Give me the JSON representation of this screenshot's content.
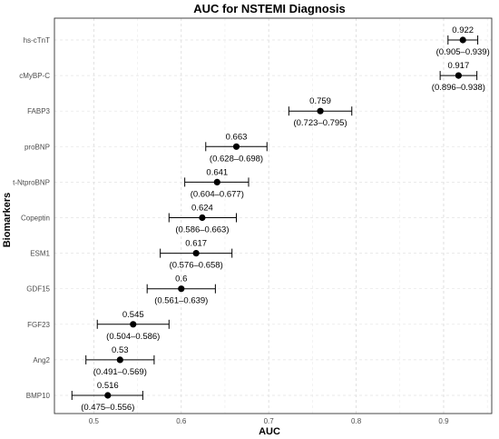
{
  "chart_data": {
    "type": "forest",
    "title": "AUC for NSTEMI Diagnosis",
    "xlabel": "AUC",
    "ylabel": "Biomarkers",
    "xlim": [
      0.455,
      0.955
    ],
    "xticks": [
      0.5,
      0.6,
      0.7,
      0.8,
      0.9
    ],
    "x_tick_labels": [
      "0.5",
      "0.6",
      "0.7",
      "0.8",
      "0.9"
    ],
    "grid": true,
    "border": true,
    "point_color": "#000000",
    "markers": [
      {
        "name": "hs-cTnT",
        "auc": 0.922,
        "lower": 0.905,
        "upper": 0.939,
        "auc_label": "0.922",
        "ci_label": "(0.905–0.939)"
      },
      {
        "name": "cMyBP-C",
        "auc": 0.917,
        "lower": 0.896,
        "upper": 0.938,
        "auc_label": "0.917",
        "ci_label": "(0.896–0.938)"
      },
      {
        "name": "FABP3",
        "auc": 0.759,
        "lower": 0.723,
        "upper": 0.795,
        "auc_label": "0.759",
        "ci_label": "(0.723–0.795)"
      },
      {
        "name": "proBNP",
        "auc": 0.663,
        "lower": 0.628,
        "upper": 0.698,
        "auc_label": "0.663",
        "ci_label": "(0.628–0.698)"
      },
      {
        "name": "t-NtproBNP",
        "auc": 0.641,
        "lower": 0.604,
        "upper": 0.677,
        "auc_label": "0.641",
        "ci_label": "(0.604–0.677)"
      },
      {
        "name": "Copeptin",
        "auc": 0.624,
        "lower": 0.586,
        "upper": 0.663,
        "auc_label": "0.624",
        "ci_label": "(0.586–0.663)"
      },
      {
        "name": "ESM1",
        "auc": 0.617,
        "lower": 0.576,
        "upper": 0.658,
        "auc_label": "0.617",
        "ci_label": "(0.576–0.658)"
      },
      {
        "name": "GDF15",
        "auc": 0.6,
        "lower": 0.561,
        "upper": 0.639,
        "auc_label": "0.6",
        "ci_label": "(0.561–0.639)"
      },
      {
        "name": "FGF23",
        "auc": 0.545,
        "lower": 0.504,
        "upper": 0.586,
        "auc_label": "0.545",
        "ci_label": "(0.504–0.586)"
      },
      {
        "name": "Ang2",
        "auc": 0.53,
        "lower": 0.491,
        "upper": 0.569,
        "auc_label": "0.53",
        "ci_label": "(0.491–0.569)"
      },
      {
        "name": "BMP10",
        "auc": 0.516,
        "lower": 0.475,
        "upper": 0.556,
        "auc_label": "0.516",
        "ci_label": "(0.475–0.556)"
      }
    ]
  }
}
